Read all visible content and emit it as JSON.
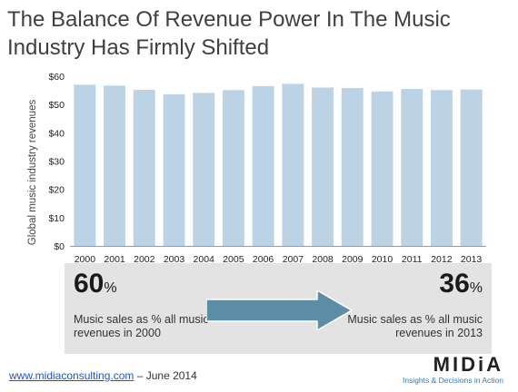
{
  "title": "The Balance Of Revenue Power In The Music Industry Has Firmly Shifted",
  "chart_data": {
    "type": "bar",
    "categories": [
      "2000",
      "2001",
      "2002",
      "2003",
      "2004",
      "2005",
      "2006",
      "2007",
      "2008",
      "2009",
      "2010",
      "2011",
      "2012",
      "2013"
    ],
    "values": [
      57,
      56.7,
      55.2,
      53.6,
      54.1,
      55.1,
      56.5,
      57.3,
      56.0,
      55.8,
      54.6,
      55.5,
      55.1,
      55.3
    ],
    "ylabel": "Global music industry revenues",
    "xlabel": "",
    "ylim": [
      0,
      60
    ],
    "yticks": [
      "$0",
      "$10",
      "$20",
      "$30",
      "$40",
      "$50",
      "$60"
    ],
    "bar_color": "#bcd3e6",
    "grid": false
  },
  "summary": {
    "left_value": "60",
    "left_symbol": "%",
    "left_text": "Music sales as % all music revenues in 2000",
    "right_value": "36",
    "right_symbol": "%",
    "right_text": "Music sales as % all music revenues in 2013",
    "arrow_color": "#5b8ea6"
  },
  "footer": {
    "link": "www.midiaconsulting.com",
    "date": " – June 2014"
  },
  "logo": {
    "word": "MIDiA",
    "tagline": "Insights & Decisions in Action"
  }
}
